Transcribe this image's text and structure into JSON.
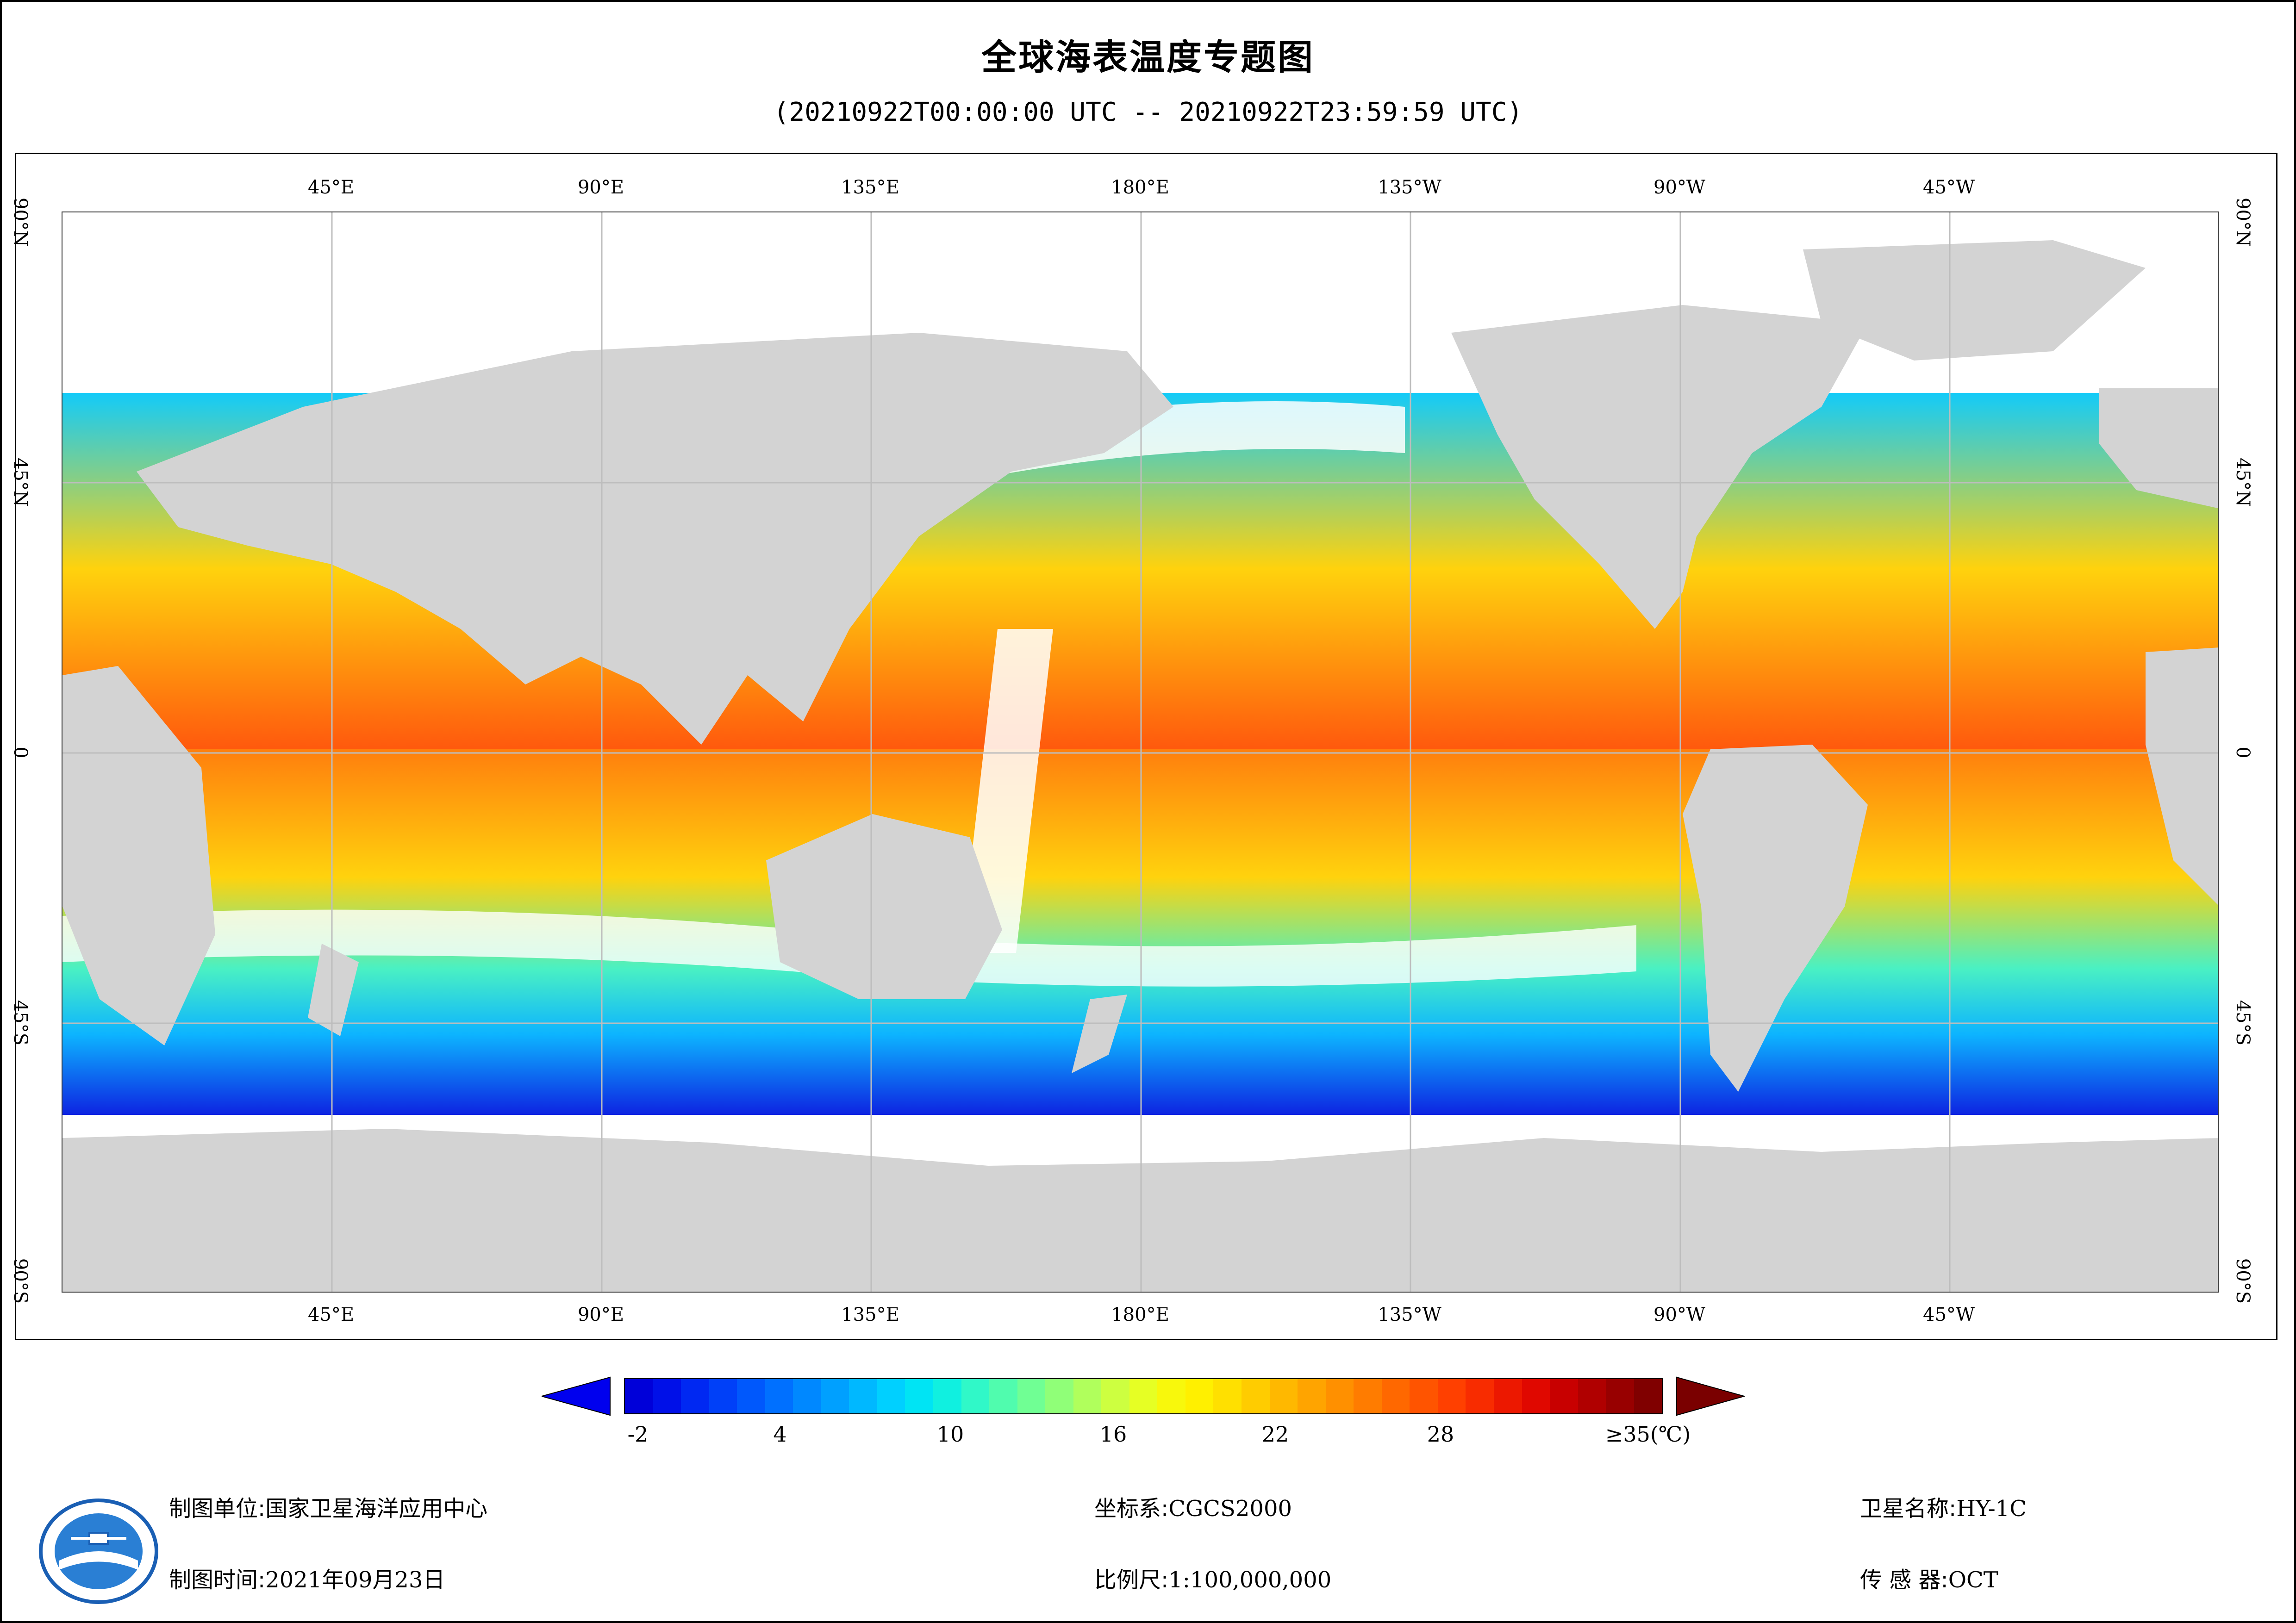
{
  "title": "全球海表温度专题图",
  "time_range": "(20210922T00:00:00 UTC -- 20210922T23:59:59 UTC)",
  "map": {
    "lon_labels_top": [
      "45°E",
      "90°E",
      "135°E",
      "180°E",
      "135°W",
      "90°W",
      "45°W"
    ],
    "lon_labels_bottom": [
      "45°E",
      "90°E",
      "135°E",
      "180°E",
      "135°W",
      "90°W",
      "45°W"
    ],
    "lat_labels": [
      "90°N",
      "45°N",
      "0",
      "45°S",
      "90°S"
    ],
    "projection_center_lon": 180,
    "land_color": "#d3d3d3",
    "no_data_color": "#ffffff",
    "grid_color": "#bdbdbd"
  },
  "legend": {
    "labels": [
      "-2",
      "4",
      "10",
      "16",
      "22",
      "28",
      "≥35(℃)"
    ],
    "min": -2,
    "max": 35,
    "colors": [
      "#0000d9",
      "#0010e8",
      "#0028f2",
      "#0040f8",
      "#0058fc",
      "#0070ff",
      "#0088ff",
      "#00a0ff",
      "#00b8ff",
      "#00d0ff",
      "#00e4f4",
      "#10f0e0",
      "#30f8c8",
      "#50fcae",
      "#70ff94",
      "#90ff78",
      "#b0ff5c",
      "#cdff40",
      "#e6ff24",
      "#f8f80c",
      "#fff000",
      "#ffe000",
      "#ffcc00",
      "#ffb800",
      "#ffa400",
      "#ff9000",
      "#ff7c00",
      "#ff6800",
      "#ff5400",
      "#ff4000",
      "#f82c00",
      "#ec1800",
      "#e00800",
      "#c80000",
      "#b00000",
      "#980000",
      "#800000"
    ],
    "arrow_left_color": "#0000ee",
    "arrow_right_color": "#7a0000"
  },
  "footer": {
    "org_label": "制图单位:",
    "org_value": "国家卫星海洋应用中心",
    "time_label": "制图时间:",
    "time_value": "2021年09月23日",
    "crs_label": "坐标系:",
    "crs_value": "CGCS2000",
    "scale_label": "比例尺:",
    "scale_value": "1:100,000,000",
    "sat_label": "卫星名称:",
    "sat_value": "HY-1C",
    "sensor_label": "传 感 器:",
    "sensor_value": "OCT"
  }
}
